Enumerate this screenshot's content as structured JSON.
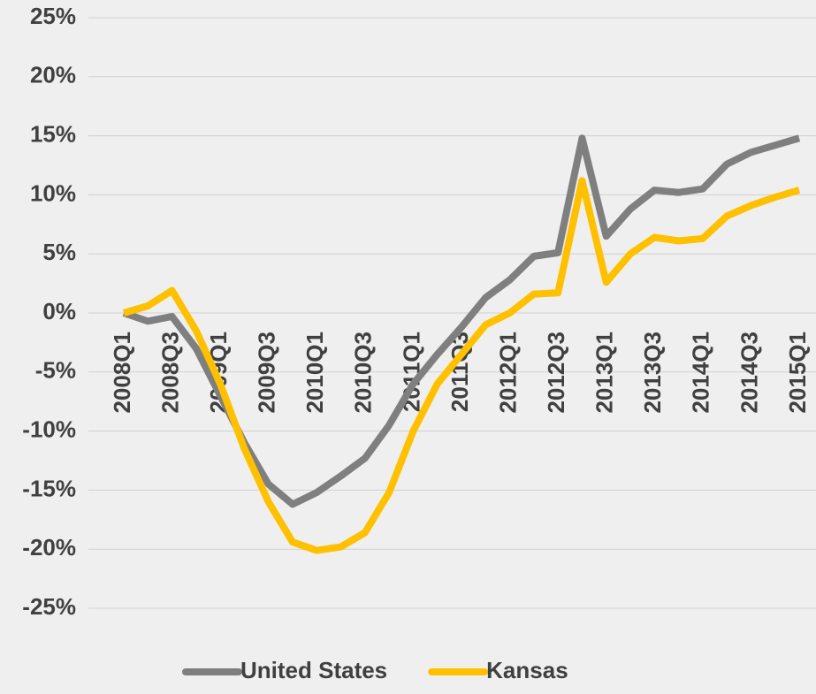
{
  "chart_data": {
    "type": "line",
    "categories": [
      "2008Q1",
      null,
      "2008Q3",
      null,
      "2009Q1",
      null,
      "2009Q3",
      null,
      "2010Q1",
      null,
      "2010Q3",
      null,
      "2011Q1",
      null,
      "2011Q3",
      null,
      "2012Q1",
      null,
      "2012Q3",
      null,
      "2013Q1",
      null,
      "2013Q3",
      null,
      "2014Q1",
      null,
      "2014Q3",
      null,
      "2015Q1"
    ],
    "series": [
      {
        "name": "United States",
        "color": "#7f7f7f",
        "values": [
          0,
          -0.7,
          -0.3,
          -3,
          -7,
          -11,
          -14.5,
          -16.2,
          -15.2,
          -13.8,
          -12.3,
          -9.5,
          -6,
          -3.5,
          -1.2,
          1.3,
          2.8,
          4.8,
          5.1,
          14.8,
          6.5,
          8.8,
          10.4,
          10.2,
          10.5,
          12.6,
          13.6,
          14.2,
          14.8
        ]
      },
      {
        "name": "Kansas",
        "color": "#ffc000",
        "values": [
          0,
          0.6,
          1.9,
          -1.5,
          -6,
          -11.5,
          -16,
          -19.4,
          -20.1,
          -19.8,
          -18.6,
          -15.2,
          -10,
          -6,
          -3.5,
          -1,
          0,
          1.6,
          1.7,
          11.2,
          2.6,
          5,
          6.4,
          6.1,
          6.3,
          8.2,
          9.1,
          9.8,
          10.4
        ]
      }
    ],
    "ylim": [
      -25,
      25
    ],
    "yticks": [
      {
        "value": -25,
        "label": "-25%"
      },
      {
        "value": -20,
        "label": "-20%"
      },
      {
        "value": -15,
        "label": "-15%"
      },
      {
        "value": -10,
        "label": "-10%"
      },
      {
        "value": -5,
        "label": "-5%"
      },
      {
        "value": 0,
        "label": "0%"
      },
      {
        "value": 5,
        "label": "5%"
      },
      {
        "value": 10,
        "label": "10%"
      },
      {
        "value": 15,
        "label": "15%"
      },
      {
        "value": 20,
        "label": "20%"
      },
      {
        "value": 25,
        "label": "25%"
      }
    ],
    "grid": true,
    "legend": "bottom"
  }
}
